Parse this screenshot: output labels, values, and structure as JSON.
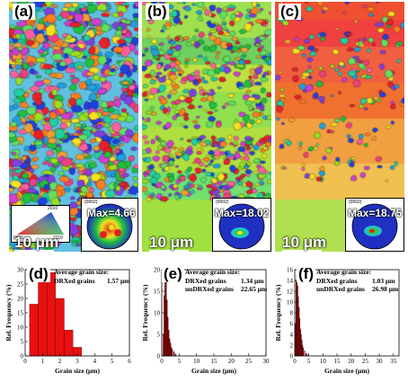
{
  "panels": [
    {
      "label": "(a)",
      "scalebar": "10 μm",
      "pf_code": "(0002)",
      "pf_max": "Max=4.66",
      "ipf": {
        "top": "2010",
        "left": "0001",
        "right": "2110"
      }
    },
    {
      "label": "(b)",
      "scalebar": "10 μm",
      "pf_code": "(0002)",
      "pf_max": "Max=18.02"
    },
    {
      "label": "(c)",
      "scalebar": "10 μm",
      "pf_code": "(0002)",
      "pf_max": "Max=18.75"
    }
  ],
  "histograms": [
    {
      "label": "(d)",
      "annotation": {
        "title": "Average grain size:",
        "rows": [
          {
            "name": "DRXed grains",
            "value": "1.57 μm"
          }
        ]
      }
    },
    {
      "label": "(e)",
      "annotation": {
        "title": "Average grain size:",
        "rows": [
          {
            "name": "DRXed grains",
            "value": "1.34 μm"
          },
          {
            "name": "unDRXed grains",
            "value": "22.65 μm"
          }
        ]
      }
    },
    {
      "label": "(f)",
      "annotation": {
        "title": "Average grain size:",
        "rows": [
          {
            "name": "DRXed grains",
            "value": "1.03 μm"
          },
          {
            "name": "unDRXed grains",
            "value": "26.98 μm"
          }
        ]
      }
    }
  ],
  "chart_data": [
    {
      "type": "bar",
      "title": "",
      "xlabel": "Grain size (μm)",
      "ylabel": "Rel. Frequency (%)",
      "xlim": [
        0,
        6
      ],
      "ylim": [
        0,
        30
      ],
      "xticks": [
        0,
        1,
        2,
        3,
        4,
        5,
        6
      ],
      "yticks": [
        0,
        5,
        10,
        15,
        20,
        25,
        30
      ],
      "bin_width": 0.5,
      "x": [
        0.5,
        1.0,
        1.5,
        2.0,
        2.5,
        3.0
      ],
      "values": [
        18,
        29,
        29,
        20,
        9,
        3
      ],
      "color": "#e81010"
    },
    {
      "type": "bar",
      "title": "",
      "xlabel": "Grain size (μm)",
      "ylabel": "Rel. Frequency (%)",
      "xlim": [
        0,
        30
      ],
      "ylim": [
        0,
        20
      ],
      "xticks": [
        0,
        5,
        10,
        15,
        20,
        25,
        30
      ],
      "yticks": [
        0,
        5,
        10,
        15,
        20
      ],
      "bin_width": 0.25,
      "x": [
        0.5,
        0.75,
        1.0,
        1.25,
        1.5,
        1.75,
        2.0,
        2.25,
        2.5,
        2.75,
        3.0,
        3.5,
        4.0
      ],
      "values": [
        5,
        14,
        20,
        18,
        13,
        9,
        6,
        4,
        3,
        2,
        1.5,
        1,
        0.5
      ],
      "color": "#8b0000"
    },
    {
      "type": "bar",
      "title": "",
      "xlabel": "Grain size (μm)",
      "ylabel": "Rel. Frequency (%)",
      "xlim": [
        0,
        37
      ],
      "ylim": [
        0,
        16
      ],
      "xticks": [
        0,
        5,
        10,
        15,
        20,
        25,
        30,
        35
      ],
      "yticks": [
        0,
        2,
        4,
        6,
        8,
        10,
        12,
        14,
        16
      ],
      "bin_width": 0.25,
      "x": [
        0.25,
        0.5,
        0.75,
        1.0,
        1.25,
        1.5,
        1.75,
        2.0,
        2.25,
        2.5,
        2.75,
        3.0,
        3.5,
        4.0,
        4.5
      ],
      "values": [
        6,
        14,
        15,
        13,
        11,
        9,
        7,
        5,
        4,
        3,
        2,
        1.5,
        1,
        0.5,
        0.3
      ],
      "color": "#8b0000"
    }
  ],
  "colors": {
    "ipf_red": "#e8202a",
    "ipf_green": "#1fd030",
    "ipf_blue": "#1a40e8"
  }
}
